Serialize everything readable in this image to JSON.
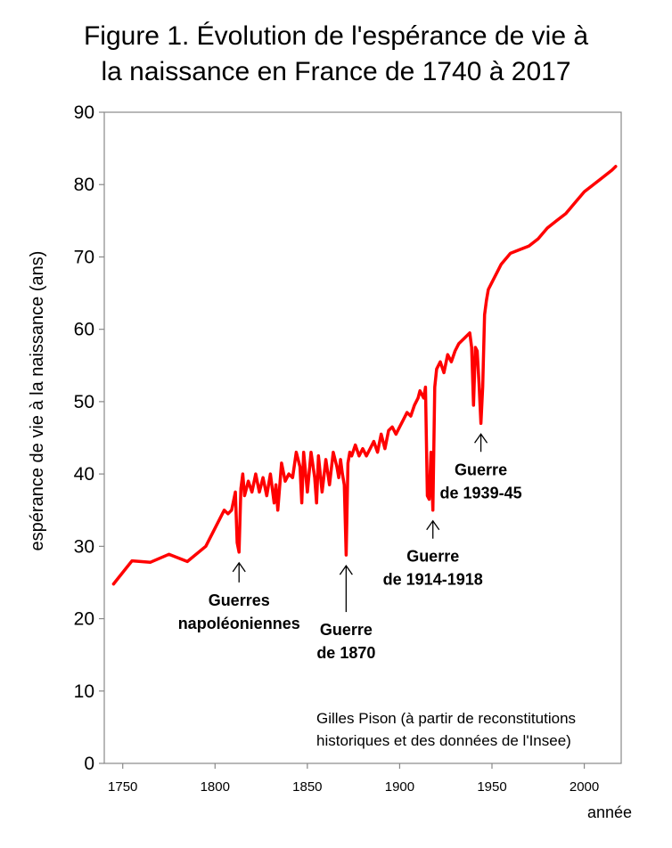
{
  "chart_data": {
    "type": "line",
    "title_lines": [
      "Figure 1. Évolution de l'espérance de vie à",
      "la naissance en France de 1740 à 2017"
    ],
    "xlabel": "année",
    "ylabel": "espérance de vie à la naissance (ans)",
    "xlim": [
      1740,
      2020
    ],
    "ylim": [
      0,
      90
    ],
    "x_ticks": [
      1750,
      1800,
      1850,
      1900,
      1950,
      2000
    ],
    "y_ticks": [
      0,
      10,
      20,
      30,
      40,
      50,
      60,
      70,
      80,
      90
    ],
    "grid": false,
    "line_color": "#ff0000",
    "series": [
      {
        "x": [
          1745,
          1755,
          1765,
          1775,
          1785,
          1795,
          1805,
          1807,
          1809,
          1811,
          1812,
          1813,
          1814,
          1815,
          1816,
          1818,
          1820,
          1822,
          1824,
          1826,
          1828,
          1830,
          1832,
          1833,
          1834,
          1836,
          1838,
          1840,
          1842,
          1844,
          1846,
          1847,
          1848,
          1850,
          1852,
          1854,
          1855,
          1856,
          1858,
          1860,
          1862,
          1864,
          1866,
          1867,
          1868,
          1869,
          1870,
          1871,
          1872,
          1873,
          1874,
          1876,
          1878,
          1880,
          1882,
          1884,
          1886,
          1888,
          1890,
          1892,
          1894,
          1896,
          1898,
          1900,
          1902,
          1904,
          1906,
          1908,
          1910,
          1911,
          1912,
          1913,
          1914,
          1915,
          1916,
          1917,
          1918,
          1919,
          1920,
          1922,
          1924,
          1926,
          1928,
          1930,
          1932,
          1934,
          1936,
          1938,
          1939,
          1940,
          1941,
          1942,
          1943,
          1944,
          1945,
          1946,
          1947,
          1948,
          1950,
          1955,
          1960,
          1965,
          1970,
          1975,
          1980,
          1985,
          1990,
          1995,
          2000,
          2005,
          2010,
          2015,
          2017
        ],
        "y": [
          24.8,
          28,
          27.8,
          28.9,
          27.9,
          30,
          35,
          34.5,
          35,
          37.5,
          30.5,
          29.2,
          38,
          40,
          37,
          39,
          37.5,
          40,
          37.5,
          39.5,
          37,
          40,
          36,
          38.5,
          35,
          41.5,
          39,
          40,
          39.5,
          43,
          41,
          36,
          43,
          37.5,
          43,
          39.5,
          36,
          42.5,
          37.5,
          42,
          38.5,
          43,
          41,
          39.5,
          42,
          40,
          38.5,
          28.8,
          41.5,
          43,
          42.5,
          44,
          42.5,
          43.5,
          42.5,
          43.5,
          44.5,
          43,
          45.5,
          43.5,
          46,
          46.5,
          45.5,
          46.5,
          47.5,
          48.5,
          48,
          49.5,
          50.5,
          51.5,
          51,
          50.5,
          52,
          37,
          36.5,
          43,
          35,
          52,
          54.5,
          55.5,
          54,
          56.5,
          55.5,
          57,
          58,
          58.5,
          59,
          59.5,
          57.5,
          49.5,
          57.5,
          57,
          52.5,
          47,
          52,
          62,
          64,
          65.5,
          66.5,
          69,
          70.5,
          71,
          71.5,
          72.5,
          74,
          75,
          76,
          77.5,
          79,
          80,
          81,
          82,
          82.5
        ]
      }
    ],
    "annotations": [
      {
        "lines": [
          "Guerres",
          "napoléoniennes"
        ],
        "x": 1813,
        "y": 29.2
      },
      {
        "lines": [
          "Guerre",
          "de 1870"
        ],
        "x": 1871,
        "y": 28.8
      },
      {
        "lines": [
          "Guerre",
          "de 1914-1918"
        ],
        "x": 1918,
        "y": 35
      },
      {
        "lines": [
          "Guerre",
          "de 1939-45"
        ],
        "x": 1944,
        "y": 47
      }
    ],
    "credit_lines": [
      "Gilles Pison (à partir de reconstitutions",
      "historiques et des données de l'Insee)"
    ]
  }
}
